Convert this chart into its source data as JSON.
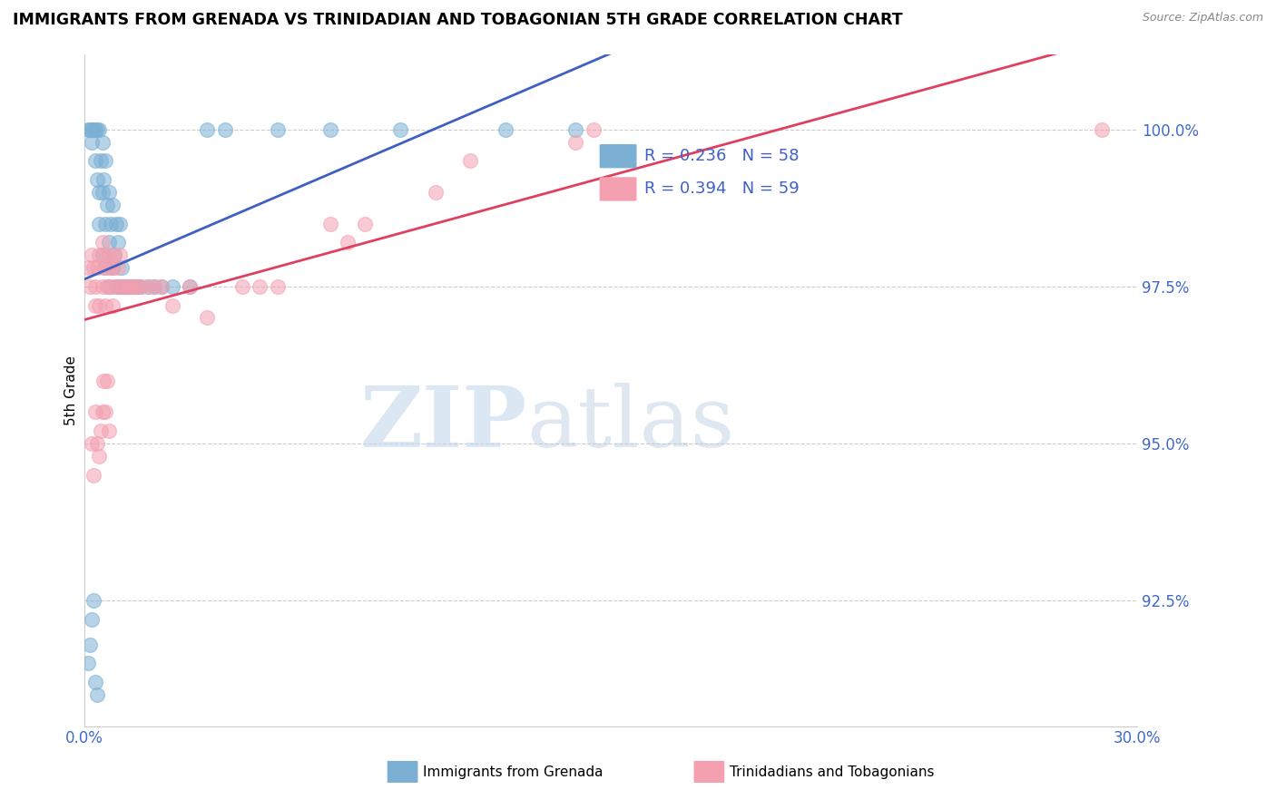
{
  "title": "IMMIGRANTS FROM GRENADA VS TRINIDADIAN AND TOBAGONIAN 5TH GRADE CORRELATION CHART",
  "source": "Source: ZipAtlas.com",
  "ylabel": "5th Grade",
  "xlim": [
    0.0,
    30.0
  ],
  "ylim": [
    90.5,
    101.2
  ],
  "yticks": [
    92.5,
    95.0,
    97.5,
    100.0
  ],
  "ytick_labels": [
    "92.5%",
    "95.0%",
    "97.5%",
    "100.0%"
  ],
  "xticks": [
    0.0,
    5.0,
    10.0,
    15.0,
    20.0,
    25.0,
    30.0
  ],
  "xtick_labels": [
    "0.0%",
    "",
    "",
    "",
    "",
    "",
    "30.0%"
  ],
  "blue_R": 0.236,
  "blue_N": 58,
  "pink_R": 0.394,
  "pink_N": 59,
  "blue_color": "#7bafd4",
  "pink_color": "#f4a0b0",
  "blue_trend_color": "#4060c0",
  "pink_trend_color": "#e04060",
  "legend_label_blue": "Immigrants from Grenada",
  "legend_label_pink": "Trinidadians and Tobagonians",
  "watermark_zip": "ZIP",
  "watermark_atlas": "atlas",
  "blue_x": [
    0.1,
    0.15,
    0.2,
    0.2,
    0.25,
    0.3,
    0.3,
    0.35,
    0.35,
    0.4,
    0.4,
    0.4,
    0.45,
    0.5,
    0.5,
    0.5,
    0.55,
    0.6,
    0.6,
    0.6,
    0.65,
    0.7,
    0.7,
    0.7,
    0.75,
    0.8,
    0.8,
    0.85,
    0.9,
    0.9,
    0.95,
    1.0,
    1.0,
    1.05,
    1.1,
    1.2,
    1.3,
    1.4,
    1.5,
    1.6,
    1.8,
    2.0,
    2.2,
    2.5,
    3.0,
    3.5,
    4.0,
    5.5,
    7.0,
    9.0,
    12.0,
    14.0,
    0.1,
    0.15,
    0.2,
    0.25,
    0.3,
    0.35
  ],
  "blue_y": [
    100.0,
    100.0,
    100.0,
    99.8,
    100.0,
    100.0,
    99.5,
    100.0,
    99.2,
    100.0,
    99.0,
    98.5,
    99.5,
    99.8,
    99.0,
    98.0,
    99.2,
    99.5,
    98.5,
    97.8,
    98.8,
    99.0,
    98.2,
    97.5,
    98.5,
    98.8,
    97.8,
    98.0,
    98.5,
    97.5,
    98.2,
    98.5,
    97.5,
    97.8,
    97.5,
    97.5,
    97.5,
    97.5,
    97.5,
    97.5,
    97.5,
    97.5,
    97.5,
    97.5,
    97.5,
    100.0,
    100.0,
    100.0,
    100.0,
    100.0,
    100.0,
    100.0,
    91.5,
    91.8,
    92.2,
    92.5,
    91.2,
    91.0
  ],
  "pink_x": [
    0.1,
    0.15,
    0.2,
    0.25,
    0.3,
    0.3,
    0.35,
    0.4,
    0.4,
    0.5,
    0.5,
    0.55,
    0.6,
    0.6,
    0.65,
    0.7,
    0.7,
    0.75,
    0.8,
    0.8,
    0.85,
    0.9,
    0.95,
    1.0,
    1.0,
    1.1,
    1.2,
    1.3,
    1.4,
    1.5,
    1.6,
    1.8,
    2.0,
    2.2,
    2.5,
    3.0,
    3.5,
    4.5,
    5.0,
    5.5,
    7.0,
    7.5,
    8.0,
    10.0,
    11.0,
    14.0,
    14.5,
    29.0,
    0.2,
    0.25,
    0.3,
    0.35,
    0.4,
    0.45,
    0.5,
    0.55,
    0.6,
    0.65,
    0.7
  ],
  "pink_y": [
    97.8,
    97.5,
    98.0,
    97.8,
    97.5,
    97.2,
    97.8,
    98.0,
    97.2,
    98.2,
    97.5,
    97.8,
    97.2,
    98.0,
    97.5,
    97.8,
    98.0,
    97.5,
    97.8,
    97.2,
    98.0,
    97.5,
    97.8,
    98.0,
    97.5,
    97.5,
    97.5,
    97.5,
    97.5,
    97.5,
    97.5,
    97.5,
    97.5,
    97.5,
    97.2,
    97.5,
    97.0,
    97.5,
    97.5,
    97.5,
    98.5,
    98.2,
    98.5,
    99.0,
    99.5,
    99.8,
    100.0,
    100.0,
    95.0,
    94.5,
    95.5,
    95.0,
    94.8,
    95.2,
    95.5,
    96.0,
    95.5,
    96.0,
    95.2
  ]
}
